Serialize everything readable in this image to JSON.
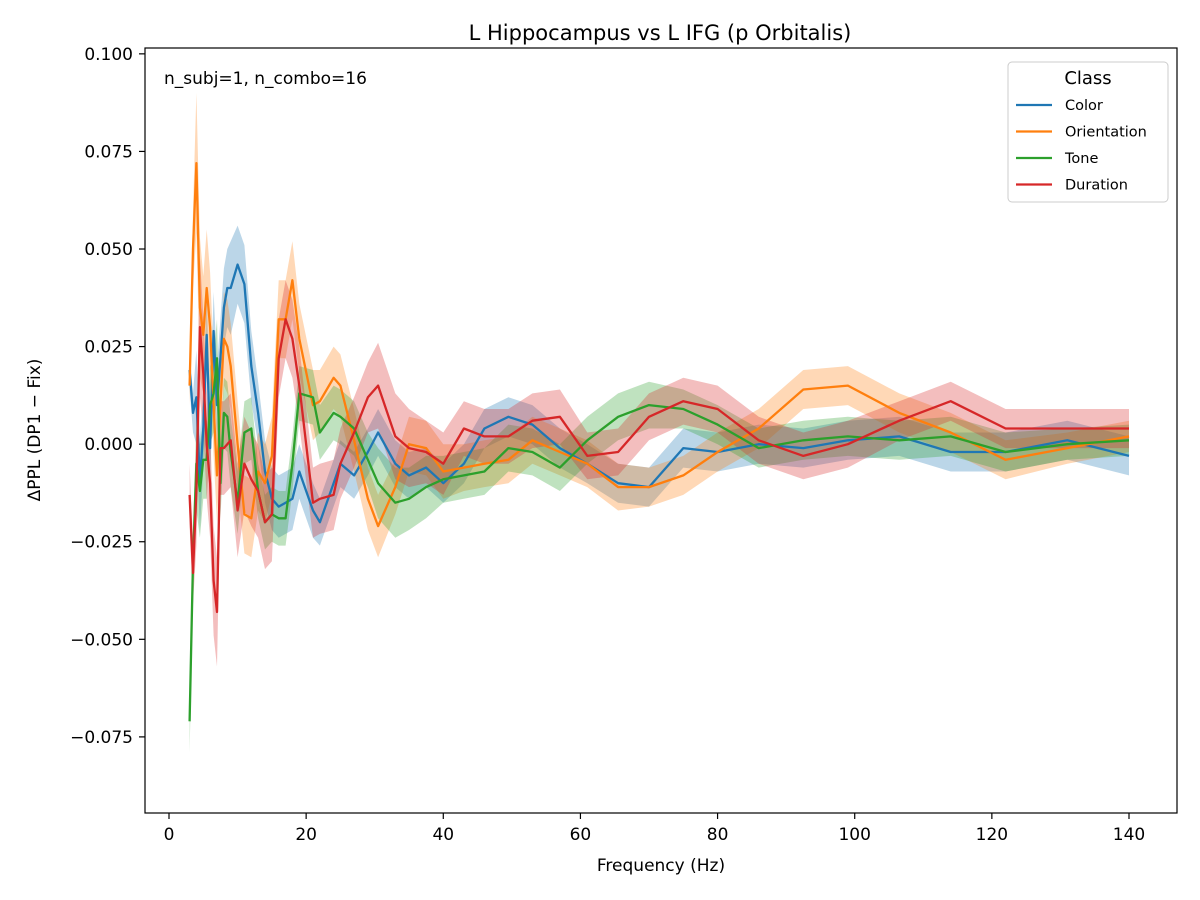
{
  "chart_data": {
    "type": "line",
    "title": "L Hippocampus vs L IFG (p Orbitalis)",
    "xlabel": "Frequency (Hz)",
    "ylabel": "ΔPPL (DP1 − Fix)",
    "annotation": "n_subj=1, n_combo=16",
    "xlim": [
      -3.5,
      147
    ],
    "ylim": [
      -0.0945,
      0.1015
    ],
    "xticks": [
      0,
      20,
      40,
      60,
      80,
      100,
      120,
      140
    ],
    "yticks": [
      -0.075,
      -0.05,
      -0.025,
      0.0,
      0.025,
      0.05,
      0.075,
      0.1
    ],
    "ytick_labels": [
      "−0.075",
      "−0.050",
      "−0.025",
      "0.000",
      "0.025",
      "0.050",
      "0.075",
      "0.100"
    ],
    "grid": false,
    "legend": {
      "title": "Class",
      "placement": "top-right"
    },
    "x": [
      3.0,
      3.5,
      4.0,
      4.5,
      5.0,
      5.5,
      6.0,
      6.5,
      7.0,
      7.5,
      8.0,
      8.5,
      9.0,
      10.0,
      11.0,
      12.0,
      13.0,
      14.0,
      15.0,
      16.0,
      17.0,
      18.0,
      19.0,
      21.0,
      22.0,
      24.0,
      25.0,
      27.0,
      29.0,
      30.5,
      33.0,
      35.0,
      37.5,
      40.0,
      43.0,
      46.0,
      49.5,
      53.0,
      57.0,
      61.0,
      65.5,
      70.0,
      75.0,
      80.0,
      86.0,
      92.5,
      99.0,
      106.5,
      114.0,
      122.0,
      131.0,
      140.0
    ],
    "series": [
      {
        "name": "Color",
        "color": "#1f77b4",
        "values": [
          0.019,
          0.008,
          0.012,
          -0.01,
          0.004,
          0.028,
          -0.001,
          0.029,
          0.01,
          0.022,
          0.035,
          0.04,
          0.04,
          0.046,
          0.041,
          0.02,
          0.008,
          -0.007,
          -0.014,
          -0.016,
          -0.015,
          -0.014,
          -0.007,
          -0.017,
          -0.02,
          -0.01,
          -0.005,
          -0.008,
          -0.002,
          0.003,
          -0.005,
          -0.008,
          -0.006,
          -0.01,
          -0.005,
          0.004,
          0.007,
          0.005,
          -0.001,
          -0.005,
          -0.01,
          -0.011,
          -0.001,
          -0.002,
          0.0,
          -0.001,
          0.001,
          0.002,
          -0.002,
          -0.002,
          0.001,
          -0.003
        ],
        "band": [
          0.005,
          0.005,
          0.012,
          0.012,
          0.01,
          0.01,
          0.01,
          0.01,
          0.01,
          0.01,
          0.01,
          0.01,
          0.012,
          0.01,
          0.01,
          0.009,
          0.008,
          0.008,
          0.008,
          0.008,
          0.008,
          0.008,
          0.007,
          0.007,
          0.006,
          0.006,
          0.006,
          0.006,
          0.006,
          0.006,
          0.006,
          0.006,
          0.005,
          0.005,
          0.005,
          0.005,
          0.005,
          0.005,
          0.005,
          0.005,
          0.005,
          0.005,
          0.005,
          0.005,
          0.005,
          0.005,
          0.005,
          0.005,
          0.005,
          0.005,
          0.005,
          0.005
        ]
      },
      {
        "name": "Orientation",
        "color": "#ff7f0e",
        "values": [
          0.015,
          0.05,
          0.072,
          0.035,
          0.028,
          0.04,
          0.03,
          0.01,
          -0.008,
          0.01,
          0.027,
          0.025,
          0.02,
          0.0,
          -0.018,
          -0.019,
          -0.007,
          -0.01,
          -0.003,
          0.032,
          0.032,
          0.042,
          0.027,
          0.01,
          0.011,
          0.017,
          0.015,
          0.001,
          -0.014,
          -0.021,
          -0.011,
          0.0,
          -0.001,
          -0.007,
          -0.006,
          -0.005,
          -0.004,
          0.001,
          -0.002,
          -0.005,
          -0.011,
          -0.011,
          -0.008,
          -0.002,
          0.004,
          0.014,
          0.015,
          0.008,
          0.003,
          -0.004,
          -0.001,
          0.002
        ],
        "band": [
          0.005,
          0.01,
          0.018,
          0.018,
          0.015,
          0.015,
          0.014,
          0.013,
          0.012,
          0.012,
          0.012,
          0.012,
          0.011,
          0.011,
          0.01,
          0.01,
          0.01,
          0.01,
          0.01,
          0.01,
          0.01,
          0.01,
          0.009,
          0.009,
          0.008,
          0.008,
          0.008,
          0.008,
          0.008,
          0.008,
          0.007,
          0.007,
          0.007,
          0.007,
          0.006,
          0.006,
          0.006,
          0.006,
          0.006,
          0.006,
          0.006,
          0.005,
          0.005,
          0.005,
          0.005,
          0.005,
          0.005,
          0.005,
          0.005,
          0.005,
          0.004,
          0.004
        ]
      },
      {
        "name": "Tone",
        "color": "#2ca02c",
        "values": [
          -0.071,
          -0.03,
          -0.005,
          -0.012,
          -0.004,
          -0.004,
          0.01,
          0.013,
          0.022,
          -0.01,
          0.008,
          0.007,
          -0.002,
          -0.015,
          0.003,
          0.004,
          -0.012,
          -0.02,
          -0.018,
          -0.019,
          -0.019,
          -0.005,
          0.013,
          0.012,
          0.003,
          0.008,
          0.007,
          0.004,
          -0.004,
          -0.01,
          -0.015,
          -0.014,
          -0.011,
          -0.009,
          -0.008,
          -0.007,
          -0.001,
          -0.002,
          -0.006,
          0.001,
          0.007,
          0.01,
          0.009,
          0.005,
          -0.001,
          0.001,
          0.002,
          0.001,
          0.002,
          -0.002,
          0.0,
          0.001
        ],
        "band": [
          0.008,
          0.008,
          0.012,
          0.012,
          0.01,
          0.01,
          0.01,
          0.01,
          0.01,
          0.009,
          0.009,
          0.009,
          0.009,
          0.008,
          0.008,
          0.008,
          0.007,
          0.007,
          0.007,
          0.007,
          0.007,
          0.007,
          0.007,
          0.007,
          0.007,
          0.007,
          0.007,
          0.007,
          0.007,
          0.009,
          0.009,
          0.008,
          0.008,
          0.006,
          0.006,
          0.006,
          0.006,
          0.006,
          0.006,
          0.006,
          0.006,
          0.006,
          0.005,
          0.005,
          0.005,
          0.005,
          0.005,
          0.005,
          0.005,
          0.005,
          0.004,
          0.004
        ]
      },
      {
        "name": "Duration",
        "color": "#d62728",
        "values": [
          -0.013,
          -0.033,
          -0.012,
          0.03,
          0.018,
          0.0,
          -0.01,
          -0.035,
          -0.043,
          -0.001,
          -0.001,
          0.0,
          0.001,
          -0.017,
          -0.005,
          -0.009,
          -0.012,
          -0.02,
          -0.018,
          0.022,
          0.032,
          0.027,
          0.015,
          -0.015,
          -0.014,
          -0.013,
          -0.005,
          0.003,
          0.012,
          0.015,
          0.002,
          -0.001,
          -0.002,
          -0.005,
          0.004,
          0.002,
          0.002,
          0.006,
          0.007,
          -0.003,
          -0.002,
          0.007,
          0.011,
          0.009,
          0.001,
          -0.003,
          0.0,
          0.006,
          0.011,
          0.004,
          0.004,
          0.004
        ],
        "band": [
          0.008,
          0.008,
          0.014,
          0.018,
          0.015,
          0.014,
          0.014,
          0.014,
          0.014,
          0.012,
          0.012,
          0.012,
          0.012,
          0.012,
          0.012,
          0.012,
          0.012,
          0.012,
          0.012,
          0.01,
          0.01,
          0.01,
          0.01,
          0.009,
          0.009,
          0.009,
          0.009,
          0.009,
          0.009,
          0.011,
          0.011,
          0.01,
          0.008,
          0.008,
          0.007,
          0.007,
          0.007,
          0.007,
          0.007,
          0.006,
          0.006,
          0.006,
          0.006,
          0.006,
          0.006,
          0.006,
          0.006,
          0.005,
          0.005,
          0.005,
          0.005,
          0.005
        ]
      }
    ]
  }
}
